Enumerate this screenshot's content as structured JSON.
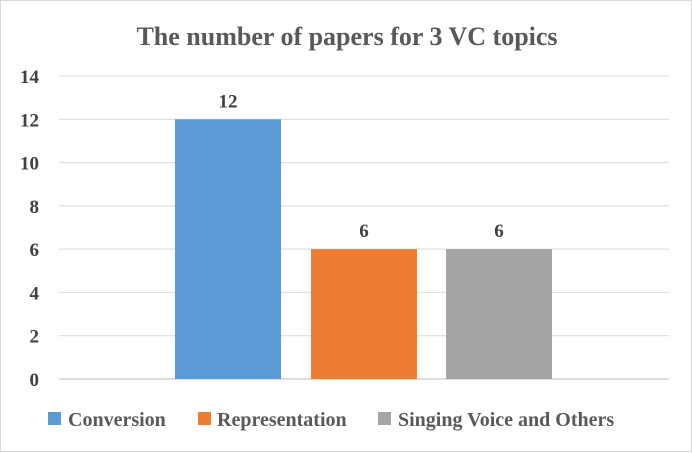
{
  "chart_data": {
    "type": "bar",
    "title": "The number of papers for 3 VC topics",
    "xlabel": "",
    "ylabel": "",
    "ylim": [
      0,
      14
    ],
    "yticks": [
      0,
      2,
      4,
      6,
      8,
      10,
      12,
      14
    ],
    "grid": true,
    "legend_position": "bottom",
    "series": [
      {
        "name": "Conversion",
        "values": [
          12
        ],
        "color": "#5b9bd5"
      },
      {
        "name": "Representation",
        "values": [
          6
        ],
        "color": "#ed7d31"
      },
      {
        "name": "Singing Voice and Others",
        "values": [
          6
        ],
        "color": "#a5a5a5"
      }
    ],
    "data_labels": [
      "12",
      "6",
      "6"
    ]
  }
}
